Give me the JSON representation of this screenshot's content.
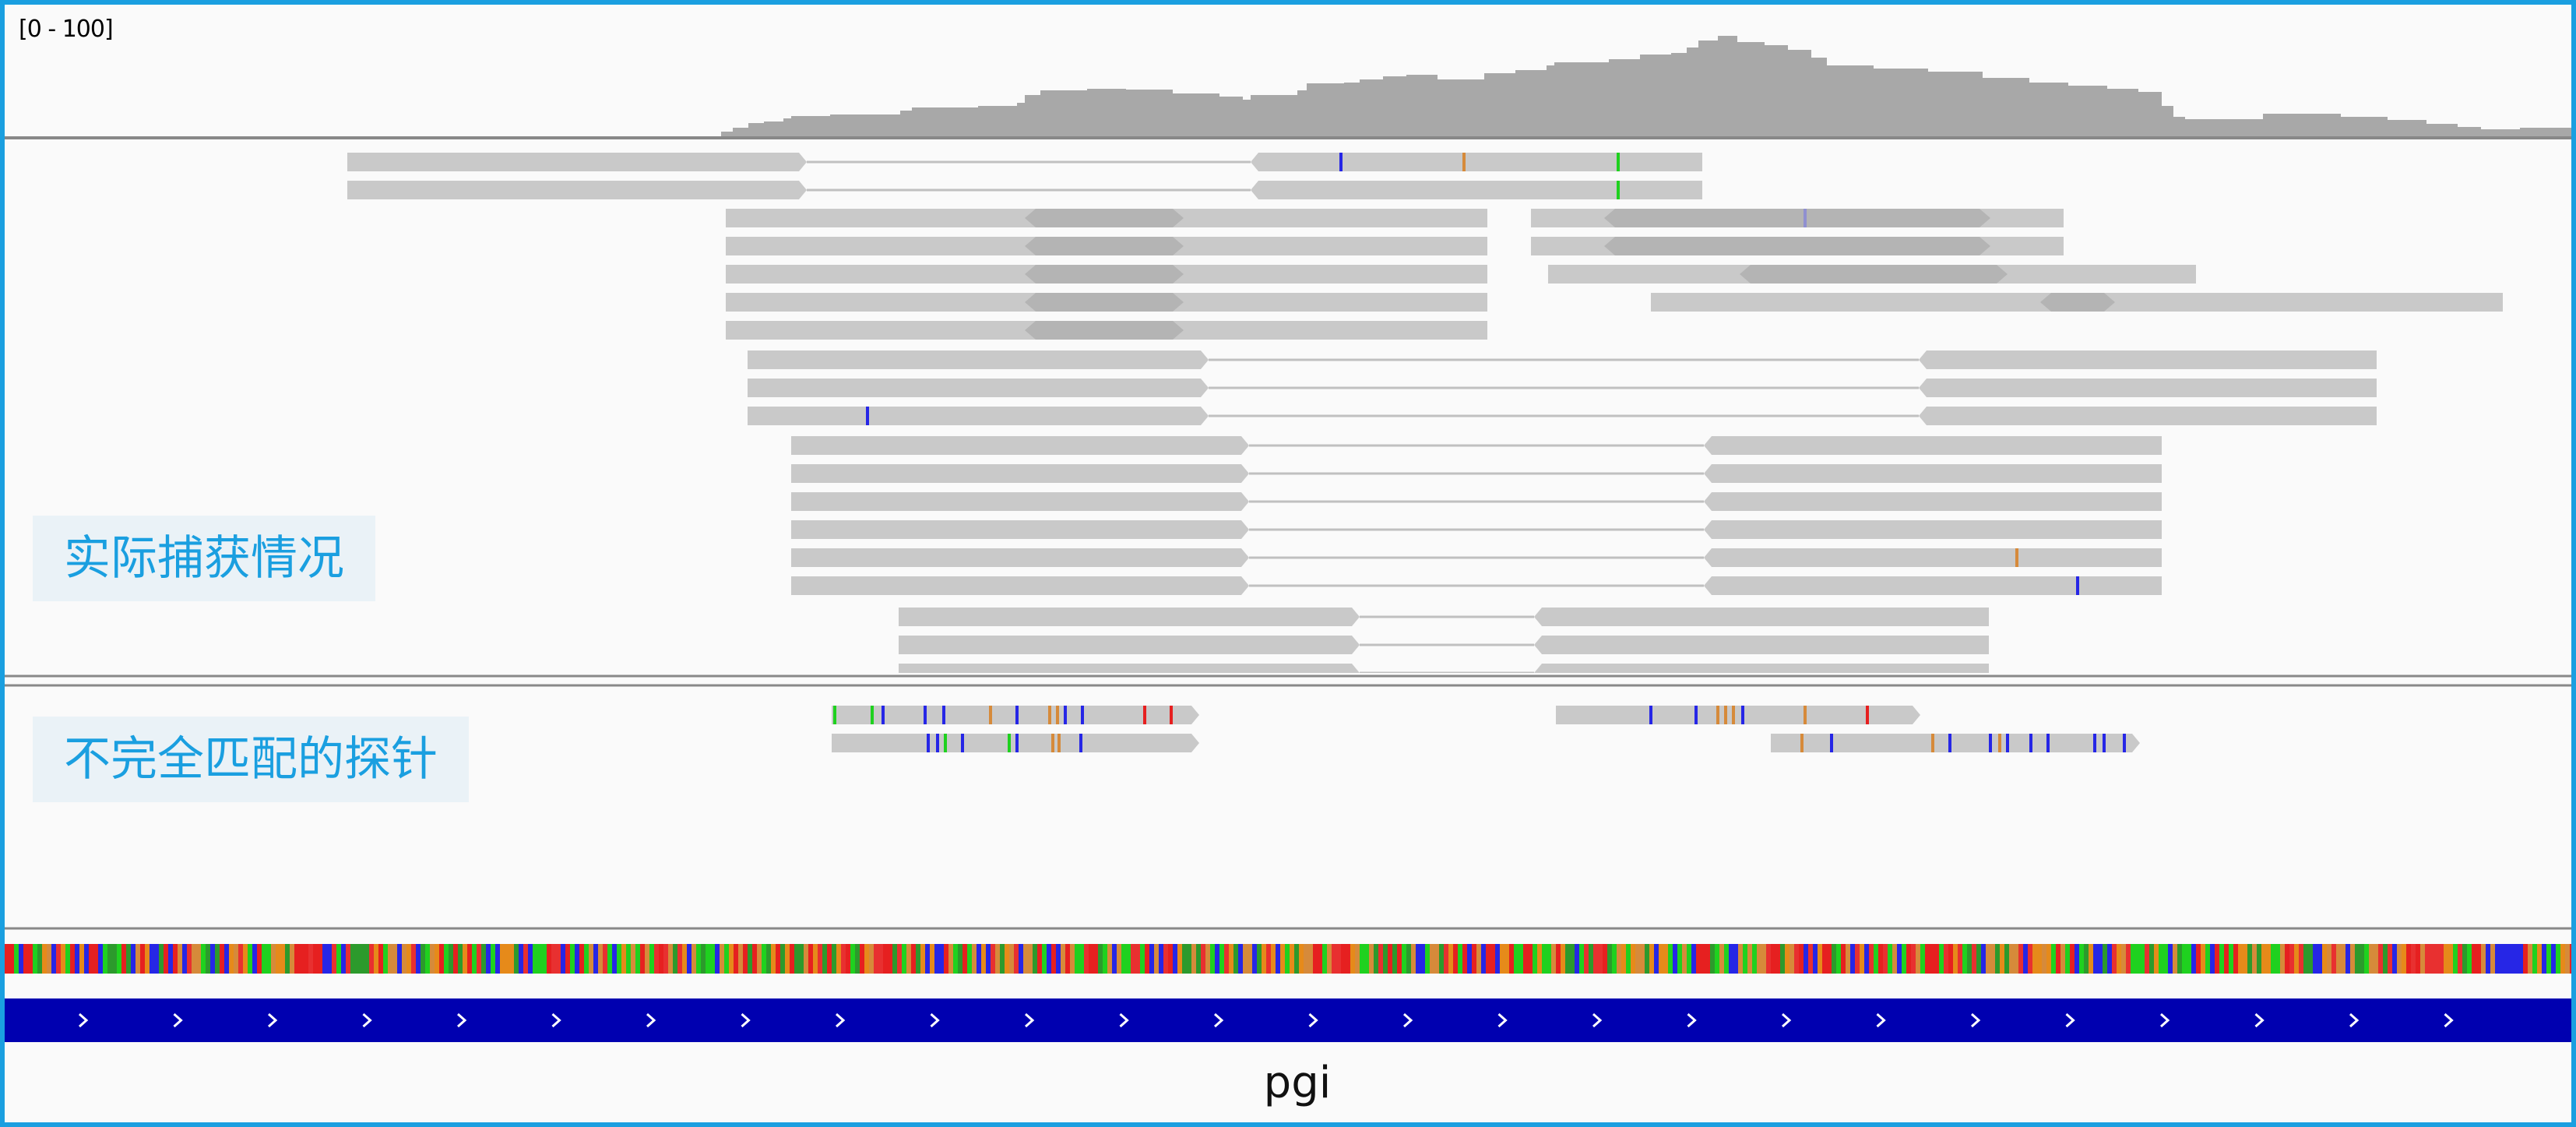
{
  "coverage": {
    "range_label": "[0 - 100]"
  },
  "labels": {
    "actual_capture": "实际捕获情况",
    "mismatched_probes": "不完全匹配的探针"
  },
  "gene": {
    "name": "pgi"
  },
  "colors": {
    "frame_border": "#1a9fe0",
    "background": "#fafafa",
    "coverage": "#a8a8a8",
    "read": "#c9c9c9",
    "read_overlap": "#b4b4b4",
    "junction_line": "#c0c0c0",
    "gene_bar": "#0000b0",
    "label_text": "#1a9fe0",
    "label_box": "#eaf2f7",
    "mismatch": {
      "A": "#1fd11f",
      "C": "#2626e6",
      "G": "#d68a3a",
      "T": "#e62020",
      "faint": "#9090d0"
    }
  },
  "icons": {
    "strand": "chevron-right-icon"
  }
}
